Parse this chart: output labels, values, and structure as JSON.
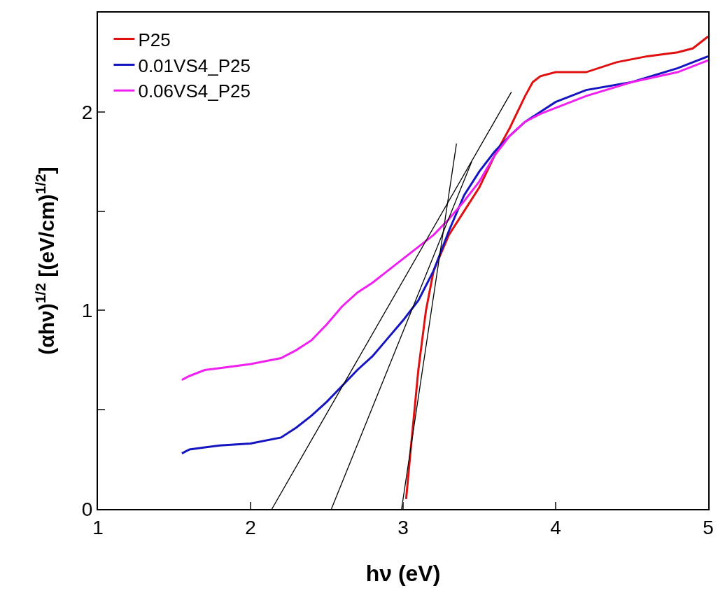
{
  "chart_data": {
    "type": "line",
    "xlabel": "hν (eV)",
    "ylabel": "(αhν)$^{1/2}$ [(eV/cm)$^{1/2}$]",
    "xlim": [
      1,
      5
    ],
    "ylim": [
      0,
      2.5
    ],
    "xticks": [
      1,
      2,
      3,
      4,
      5
    ],
    "yticks": [
      0,
      {
        "value": 0.5,
        "label": null
      },
      1,
      {
        "value": 1.5,
        "label": null
      },
      2
    ],
    "grid": false,
    "legend": "top left",
    "marker": "none",
    "line_style": "solid",
    "series": [
      {
        "name": "P25",
        "color": "#e01010",
        "x": [
          3.02,
          3.05,
          3.1,
          3.15,
          3.2,
          3.3,
          3.4,
          3.5,
          3.6,
          3.7,
          3.8,
          3.85,
          3.9,
          4.0,
          4.2,
          4.4,
          4.6,
          4.8,
          4.9,
          5.0
        ],
        "values": [
          0.05,
          0.3,
          0.7,
          1.0,
          1.2,
          1.38,
          1.5,
          1.62,
          1.78,
          1.92,
          2.08,
          2.15,
          2.18,
          2.2,
          2.2,
          2.25,
          2.28,
          2.3,
          2.32,
          2.38
        ]
      },
      {
        "name": "0.01VS4_P25",
        "color": "#1414c0",
        "x": [
          1.55,
          1.6,
          1.7,
          1.8,
          2.0,
          2.2,
          2.3,
          2.4,
          2.5,
          2.6,
          2.7,
          2.8,
          2.9,
          3.0,
          3.1,
          3.2,
          3.3,
          3.4,
          3.5,
          3.6,
          3.7,
          3.8,
          3.9,
          4.0,
          4.2,
          4.5,
          4.8,
          5.0
        ],
        "values": [
          0.28,
          0.3,
          0.31,
          0.32,
          0.33,
          0.36,
          0.41,
          0.47,
          0.54,
          0.62,
          0.7,
          0.77,
          0.86,
          0.95,
          1.05,
          1.2,
          1.4,
          1.58,
          1.7,
          1.8,
          1.88,
          1.95,
          2.0,
          2.05,
          2.11,
          2.15,
          2.22,
          2.28
        ]
      },
      {
        "name": "0.06VS4_P25",
        "color": "#f020f0",
        "x": [
          1.55,
          1.6,
          1.7,
          1.8,
          2.0,
          2.2,
          2.3,
          2.4,
          2.5,
          2.6,
          2.7,
          2.8,
          2.9,
          3.0,
          3.1,
          3.2,
          3.3,
          3.4,
          3.5,
          3.6,
          3.7,
          3.8,
          3.9,
          4.0,
          4.2,
          4.5,
          4.8,
          5.0
        ],
        "values": [
          0.65,
          0.67,
          0.7,
          0.71,
          0.73,
          0.76,
          0.8,
          0.85,
          0.93,
          1.02,
          1.09,
          1.14,
          1.2,
          1.26,
          1.32,
          1.38,
          1.46,
          1.55,
          1.65,
          1.78,
          1.88,
          1.95,
          1.99,
          2.02,
          2.08,
          2.15,
          2.2,
          2.26
        ]
      },
      {
        "type": "line",
        "color": "#000000",
        "x": [
          2.14,
          3.71
        ],
        "values": [
          0,
          2.1
        ]
      },
      {
        "type": "line",
        "color": "#000000",
        "x": [
          2.53,
          3.45
        ],
        "values": [
          0,
          1.75
        ]
      },
      {
        "type": "line",
        "color": "#000000",
        "x": [
          2.99,
          3.35
        ],
        "values": [
          0,
          1.84
        ]
      }
    ]
  }
}
